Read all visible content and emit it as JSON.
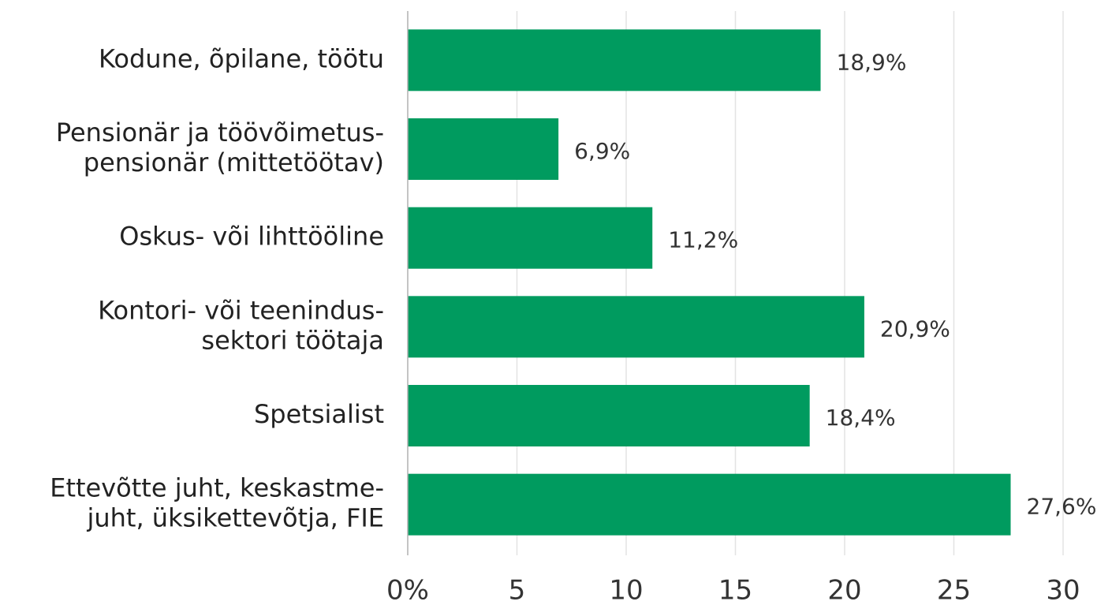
{
  "chart_data": {
    "type": "bar",
    "orientation": "horizontal",
    "categories": [
      [
        "Kodune, õpilane, töötu"
      ],
      [
        "Pensionär ja töövõimetus-",
        "pensionär (mittetöötav)"
      ],
      [
        "Oskus- või lihttööline"
      ],
      [
        "Kontori- või teenindus-",
        "sektori töötaja"
      ],
      [
        "Spetsialist"
      ],
      [
        "Ettevõtte juht, keskastme-",
        "juht, üksikettevõtja, FIE"
      ]
    ],
    "values": [
      18.9,
      6.9,
      11.2,
      20.9,
      18.4,
      27.6
    ],
    "value_labels": [
      "18,9%",
      "6,9%",
      "11,2%",
      "20,9%",
      "18,4%",
      "27,6%"
    ],
    "color": "#009b5f",
    "xlim": [
      0,
      30
    ],
    "xticks": [
      {
        "value": 0,
        "label": "0%"
      },
      5,
      10,
      15,
      20,
      25,
      30
    ],
    "grid": true
  }
}
